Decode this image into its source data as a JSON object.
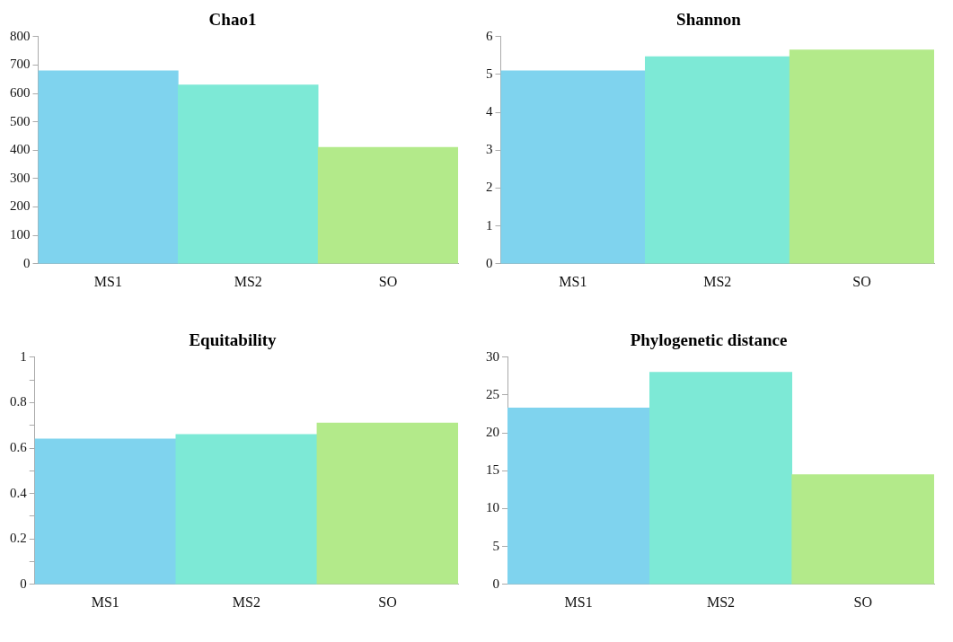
{
  "chart_data": [
    {
      "type": "bar",
      "title": "Chao1",
      "categories": [
        "MS1",
        "MS2",
        "SO"
      ],
      "values": [
        680,
        630,
        410
      ],
      "colors": [
        "#7fd3ee",
        "#7de9d6",
        "#b3ea8a"
      ],
      "ylim": [
        0,
        800
      ],
      "yticks": [
        0,
        100,
        200,
        300,
        400,
        500,
        600,
        700,
        800
      ],
      "grid": false,
      "legend": false
    },
    {
      "type": "bar",
      "title": "Shannon",
      "categories": [
        "MS1",
        "MS2",
        "SO"
      ],
      "values": [
        5.1,
        5.47,
        5.65
      ],
      "colors": [
        "#7fd3ee",
        "#7de9d6",
        "#b3ea8a"
      ],
      "ylim": [
        0,
        6
      ],
      "yticks": [
        0,
        1,
        2,
        3,
        4,
        5,
        6
      ],
      "grid": false,
      "legend": false
    },
    {
      "type": "bar",
      "title": "Equitability",
      "categories": [
        "MS1",
        "MS2",
        "SO"
      ],
      "values": [
        0.64,
        0.66,
        0.71
      ],
      "colors": [
        "#7fd3ee",
        "#7de9d6",
        "#b3ea8a"
      ],
      "ylim": [
        0,
        1
      ],
      "yticks": [
        0,
        {
          "value": 0.1,
          "label": null
        },
        0.2,
        {
          "value": 0.3,
          "label": null
        },
        0.4,
        {
          "value": 0.5,
          "label": null
        },
        0.6,
        {
          "value": 0.7,
          "label": null
        },
        0.8,
        {
          "value": 0.9,
          "label": null
        },
        1
      ],
      "grid": false,
      "legend": false
    },
    {
      "type": "bar",
      "title": "Phylogenetic distance",
      "categories": [
        "MS1",
        "MS2",
        "SO"
      ],
      "values": [
        23.3,
        28,
        14.5
      ],
      "colors": [
        "#7fd3ee",
        "#7de9d6",
        "#b3ea8a"
      ],
      "ylim": [
        0,
        30
      ],
      "yticks": [
        0,
        5,
        10,
        15,
        20,
        25,
        30
      ],
      "grid": false,
      "legend": false
    }
  ]
}
